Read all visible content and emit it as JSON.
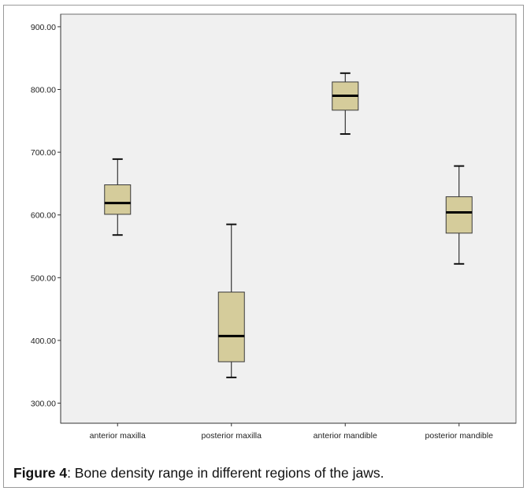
{
  "chart_data": {
    "type": "boxplot",
    "title": "",
    "xlabel": "",
    "ylabel": "",
    "ylim": [
      268,
      920
    ],
    "yticks": [
      300,
      400,
      500,
      600,
      700,
      800,
      900
    ],
    "ytick_labels": [
      "300.00",
      "400.00",
      "500.00",
      "600.00",
      "700.00",
      "800.00",
      "900.00"
    ],
    "categories": [
      "anterior maxilla",
      "posterior maxilla",
      "anterior mandible",
      "posterior mandible"
    ],
    "boxes": [
      {
        "category": "anterior maxilla",
        "min": 568,
        "q1": 601,
        "median": 619,
        "q3": 648,
        "max": 689
      },
      {
        "category": "posterior maxilla",
        "min": 341,
        "q1": 366,
        "median": 407,
        "q3": 477,
        "max": 585
      },
      {
        "category": "anterior mandible",
        "min": 729,
        "q1": 767,
        "median": 790,
        "q3": 812,
        "max": 826
      },
      {
        "category": "posterior mandible",
        "min": 522,
        "q1": 571,
        "median": 604,
        "q3": 629,
        "max": 678
      }
    ],
    "box_color": "#d5cc9b",
    "plot_background": "#f0f0f0",
    "grid": false,
    "legend": "none"
  },
  "caption": {
    "label": "Figure 4",
    "text": ": Bone density range in different regions of the jaws."
  }
}
